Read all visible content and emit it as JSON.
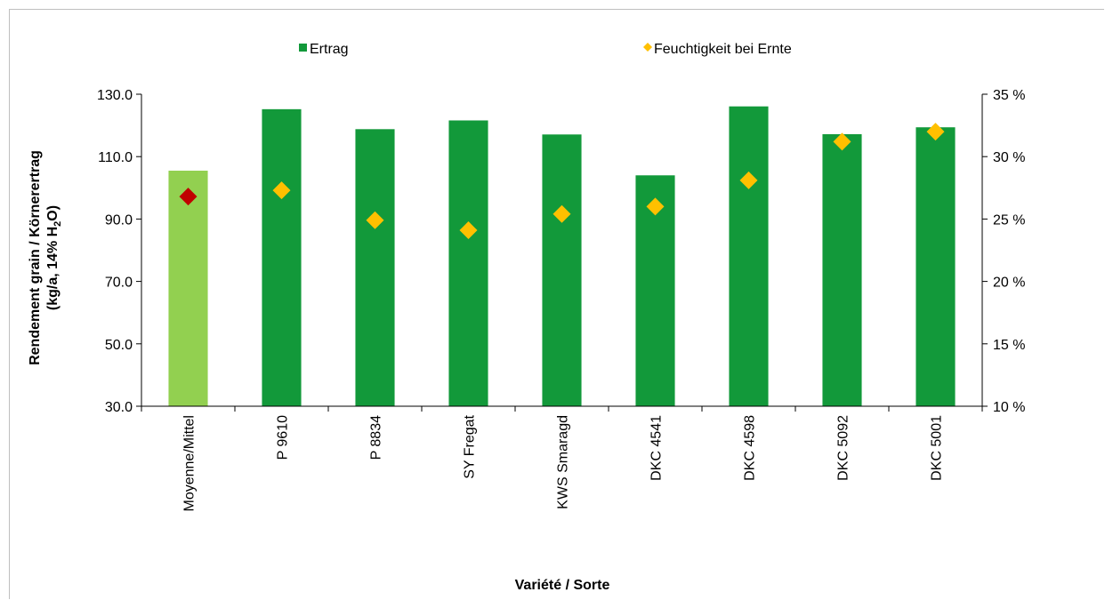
{
  "chart_data": {
    "type": "bar",
    "xlabel": "Variété / Sorte",
    "ylabel_line1": "Rendement grain / Körnerertrag",
    "ylabel_line2_pre": "(kg/a, 14% H",
    "ylabel_line2_sub": "2",
    "ylabel_line2_post": "O)",
    "categories": [
      "Moyenne/Mittel",
      "P 9610",
      "P 8834",
      "SY Fregat",
      "KWS Smaragd",
      "DKC 4541",
      "DKC 4598",
      "DKC 5092",
      "DKC 5001"
    ],
    "ylim": [
      30,
      130
    ],
    "yticks": [
      "30.0",
      "50.0",
      "70.0",
      "90.0",
      "110.0",
      "130.0"
    ],
    "y2lim": [
      10,
      35
    ],
    "y2ticks": [
      "10 %",
      "15 %",
      "20 %",
      "25 %",
      "30 %",
      "35 %"
    ],
    "legend_position": "top",
    "series": [
      {
        "name": "Ertrag",
        "kind": "bar",
        "axis": "left",
        "color": "#12993a",
        "highlight_color": "#92d050",
        "values": [
          105.5,
          125.2,
          118.8,
          121.6,
          117.1,
          104.0,
          126.1,
          117.2,
          119.4
        ]
      },
      {
        "name": "Feuchtigkeit bei Ernte",
        "kind": "marker",
        "axis": "right",
        "color": "#ffc000",
        "highlight_color": "#c00000",
        "values": [
          26.8,
          27.3,
          24.9,
          24.1,
          25.4,
          26.0,
          28.1,
          31.2,
          32.0
        ]
      }
    ]
  }
}
